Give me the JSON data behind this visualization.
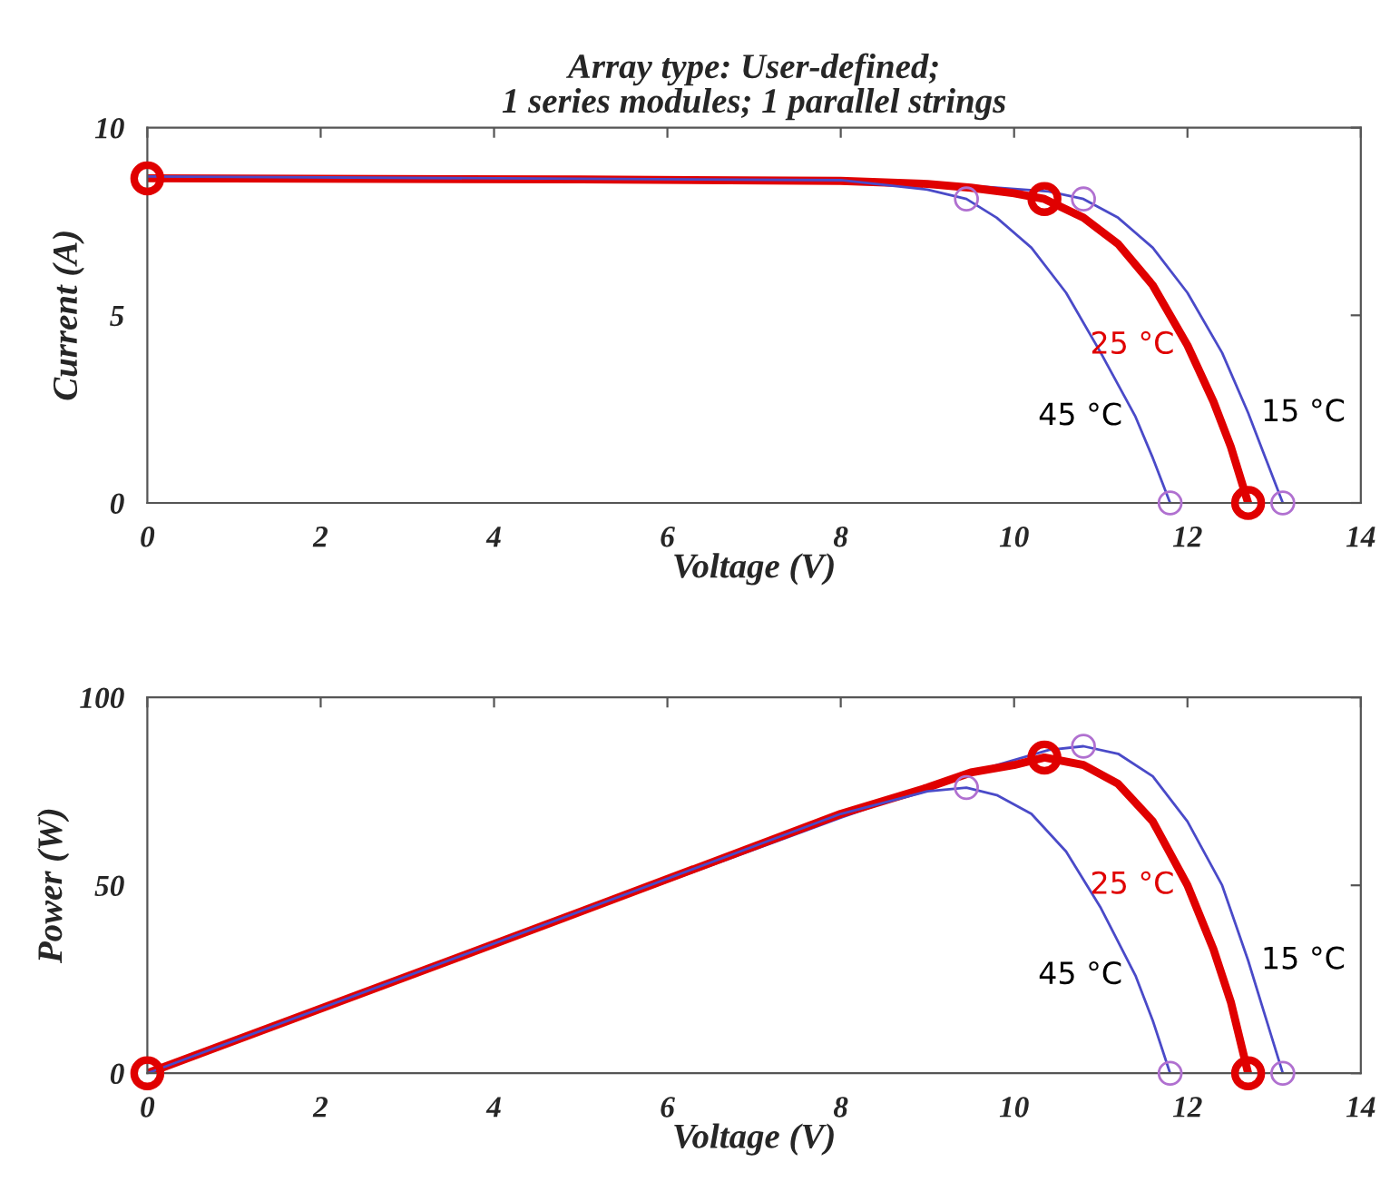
{
  "chart_data": [
    {
      "type": "line",
      "title": "Array type: User-defined;\n1 series modules; 1 parallel strings",
      "xlabel": "Voltage (V)",
      "ylabel": "Current (A)",
      "xlim": [
        0,
        14
      ],
      "xticks": [
        0,
        2,
        4,
        6,
        8,
        10,
        12,
        14
      ],
      "ylim": [
        0,
        10
      ],
      "yticks": [
        0,
        5,
        10
      ],
      "grid": false,
      "line_style": "solid",
      "series": [
        {
          "name": "15 °C",
          "color": "#4a4ac8",
          "x": [
            0,
            8,
            9.5,
            10.4,
            10.8,
            11.2,
            11.6,
            12.0,
            12.4,
            12.7,
            12.9,
            13.1
          ],
          "values": [
            8.6,
            8.55,
            8.45,
            8.3,
            8.1,
            7.6,
            6.8,
            5.6,
            4.0,
            2.4,
            1.2,
            0
          ]
        },
        {
          "name": "25 °C",
          "color": "#e00000",
          "x": [
            0,
            5,
            8,
            9,
            9.5,
            10,
            10.35,
            10.8,
            11.2,
            11.6,
            12.0,
            12.3,
            12.5,
            12.7
          ],
          "values": [
            8.65,
            8.62,
            8.58,
            8.5,
            8.4,
            8.25,
            8.1,
            7.6,
            6.9,
            5.8,
            4.2,
            2.7,
            1.5,
            0
          ]
        },
        {
          "name": "45 °C",
          "color": "#4a4ac8",
          "x": [
            0,
            8,
            9,
            9.45,
            9.8,
            10.2,
            10.6,
            11.0,
            11.4,
            11.6,
            11.8
          ],
          "values": [
            8.7,
            8.6,
            8.35,
            8.1,
            7.6,
            6.8,
            5.6,
            4.0,
            2.3,
            1.2,
            0
          ]
        },
        {
          "type": "scatter",
          "marker": "circle",
          "color": "#b070d0",
          "x": [
            10.8,
            13.1,
            9.45,
            11.8
          ],
          "values": [
            8.1,
            0,
            8.1,
            0
          ]
        },
        {
          "type": "scatter",
          "marker": "circle",
          "color": "#e00000",
          "x": [
            0,
            10.35,
            12.7
          ],
          "values": [
            8.65,
            8.1,
            0
          ]
        }
      ]
    },
    {
      "type": "line",
      "xlabel": "Voltage (V)",
      "ylabel": "Power (W)",
      "xlim": [
        0,
        14
      ],
      "xticks": [
        0,
        2,
        4,
        6,
        8,
        10,
        12,
        14
      ],
      "ylim": [
        0,
        100
      ],
      "yticks": [
        0,
        50,
        100
      ],
      "grid": false,
      "line_style": "solid",
      "series": [
        {
          "name": "15 °C",
          "color": "#4a4ac8",
          "x": [
            0,
            8,
            9.5,
            10.4,
            10.8,
            11.2,
            11.6,
            12.0,
            12.4,
            12.7,
            12.9,
            13.1
          ],
          "values": [
            0,
            68,
            80,
            86,
            87,
            85,
            79,
            67,
            50,
            30,
            15,
            0
          ]
        },
        {
          "name": "25 °C",
          "color": "#e00000",
          "x": [
            0,
            5,
            8,
            9,
            9.5,
            10,
            10.35,
            10.8,
            11.2,
            11.6,
            12.0,
            12.3,
            12.5,
            12.7
          ],
          "values": [
            0,
            43,
            69,
            76,
            80,
            82,
            84,
            82,
            77,
            67,
            50,
            33,
            19,
            0
          ]
        },
        {
          "name": "45 °C",
          "color": "#4a4ac8",
          "x": [
            0,
            8,
            9,
            9.45,
            9.8,
            10.2,
            10.6,
            11.0,
            11.4,
            11.6,
            11.8
          ],
          "values": [
            0,
            69,
            75,
            76,
            74,
            69,
            59,
            44,
            26,
            14,
            0
          ]
        },
        {
          "type": "scatter",
          "marker": "circle",
          "color": "#b070d0",
          "x": [
            10.8,
            13.1,
            9.45,
            11.8
          ],
          "values": [
            87,
            0,
            76,
            0
          ]
        },
        {
          "type": "scatter",
          "marker": "circle",
          "color": "#e00000",
          "x": [
            0,
            10.35,
            12.7
          ],
          "values": [
            0,
            84,
            0
          ]
        }
      ]
    }
  ]
}
